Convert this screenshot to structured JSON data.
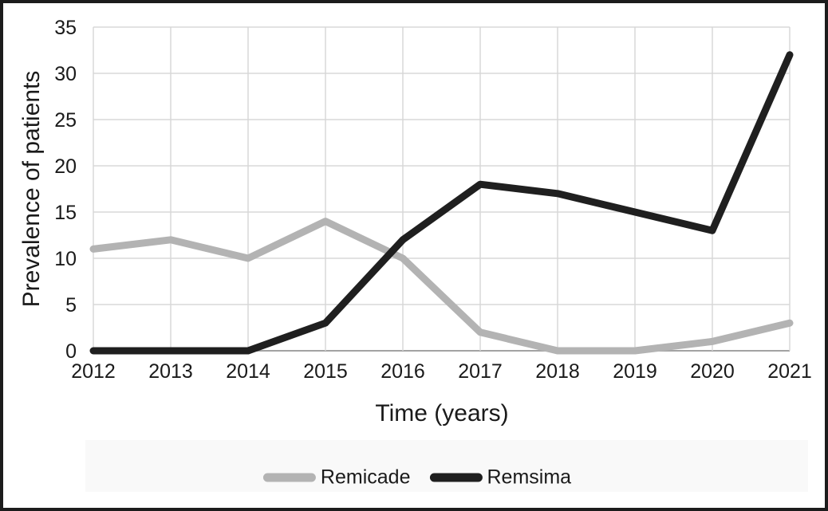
{
  "chart_data": {
    "type": "line",
    "title": "",
    "xlabel": "Time (years)",
    "ylabel": "Prevalence of patients",
    "categories": [
      "2012",
      "2013",
      "2014",
      "2015",
      "2016",
      "2017",
      "2018",
      "2019",
      "2020",
      "2021"
    ],
    "series": [
      {
        "name": "Remicade",
        "color": "#b3b3b3",
        "values": [
          11,
          12,
          10,
          14,
          10,
          2,
          0,
          0,
          1,
          3
        ]
      },
      {
        "name": "Remsima",
        "color": "#1f1f1f",
        "values": [
          0,
          0,
          0,
          3,
          12,
          18,
          17,
          15,
          13,
          32
        ]
      }
    ],
    "ylim": [
      0,
      35
    ],
    "ytick_step": 5,
    "y_ticks": [
      0,
      5,
      10,
      15,
      20,
      25,
      30,
      35
    ],
    "grid": true,
    "legend_position": "bottom"
  },
  "colors": {
    "gridline": "#d8d8d8",
    "axis": "#a3a3a3",
    "tick_label": "#1a1a1a",
    "frame": "#1c1c1c",
    "background": "#ffffff",
    "legend_band": "#f9f9f9"
  }
}
